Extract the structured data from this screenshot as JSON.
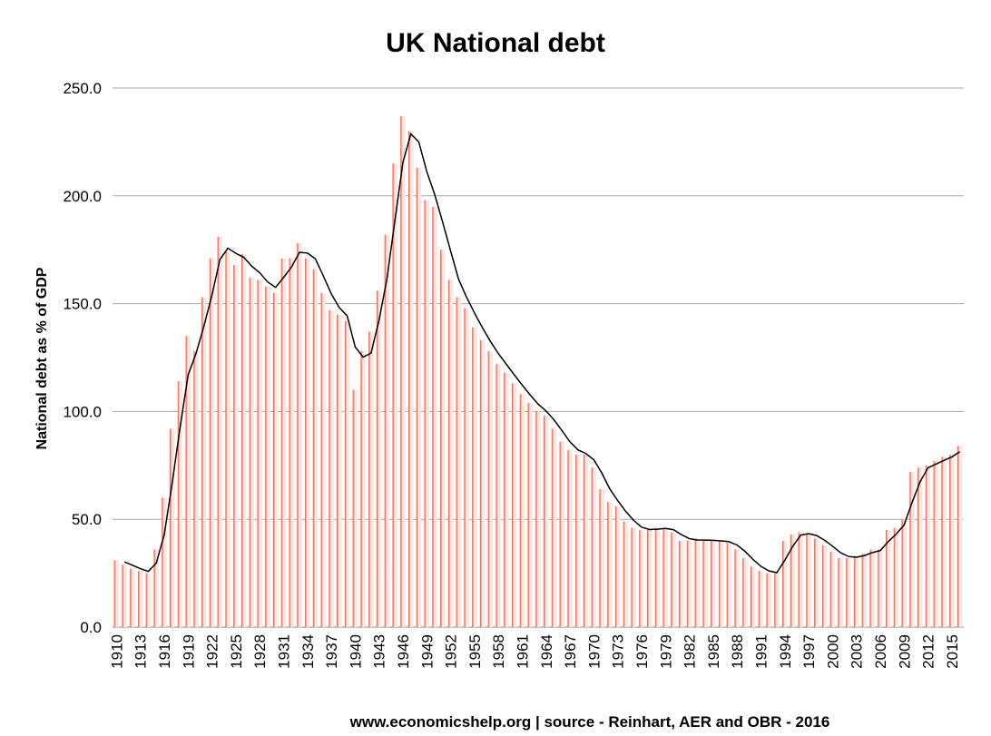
{
  "chart_data": {
    "type": "bar",
    "title": "UK National debt",
    "ylabel": "National debt as % of GDP",
    "xlabel": "",
    "source": "www.economicshelp.org | source - Reinhart, AER and OBR - 2016",
    "ylim": [
      0,
      250
    ],
    "yticks": [
      "0.0",
      "50.0",
      "100.0",
      "150.0",
      "200.0",
      "250.0"
    ],
    "grid": true,
    "legend": "none",
    "colors": {
      "bar": "#e8503a",
      "bar_light": "#fce4df",
      "line": "#000000",
      "grid": "#a6a6a6"
    },
    "xtick_labels": [
      "1910",
      "1913",
      "1916",
      "1919",
      "1922",
      "1925",
      "1928",
      "1931",
      "1934",
      "1937",
      "1940",
      "1943",
      "1946",
      "1949",
      "1952",
      "1955",
      "1958",
      "1961",
      "1964",
      "1967",
      "1970",
      "1973",
      "1976",
      "1979",
      "1982",
      "1985",
      "1988",
      "1991",
      "1994",
      "1997",
      "2000",
      "2003",
      "2006",
      "2009",
      "2012",
      "2015"
    ],
    "x": [
      1910,
      1911,
      1912,
      1913,
      1914,
      1915,
      1916,
      1917,
      1918,
      1919,
      1920,
      1921,
      1922,
      1923,
      1924,
      1925,
      1926,
      1927,
      1928,
      1929,
      1930,
      1931,
      1932,
      1933,
      1934,
      1935,
      1936,
      1937,
      1938,
      1939,
      1940,
      1941,
      1942,
      1943,
      1944,
      1945,
      1946,
      1947,
      1948,
      1949,
      1950,
      1951,
      1952,
      1953,
      1954,
      1955,
      1956,
      1957,
      1958,
      1959,
      1960,
      1961,
      1962,
      1963,
      1964,
      1965,
      1966,
      1967,
      1968,
      1969,
      1970,
      1971,
      1972,
      1973,
      1974,
      1975,
      1976,
      1977,
      1978,
      1979,
      1980,
      1981,
      1982,
      1983,
      1984,
      1985,
      1986,
      1987,
      1988,
      1989,
      1990,
      1991,
      1992,
      1993,
      1994,
      1995,
      1996,
      1997,
      1998,
      1999,
      2000,
      2001,
      2002,
      2003,
      2004,
      2005,
      2006,
      2007,
      2008,
      2009,
      2010,
      2011,
      2012,
      2013,
      2014,
      2015,
      2016
    ],
    "series": [
      {
        "values": [
          31,
          29,
          27,
          26,
          25,
          36,
          60,
          92,
          114,
          135,
          128,
          153,
          171,
          181,
          174,
          168,
          173,
          162,
          161,
          158,
          155,
          171,
          171,
          178,
          171,
          166,
          155,
          147,
          145,
          142,
          110,
          128,
          137,
          156,
          182,
          215,
          237,
          230,
          213,
          198,
          195,
          175,
          161,
          153,
          148,
          139,
          133,
          128,
          122,
          118,
          113,
          108,
          104,
          100,
          98,
          92,
          86,
          82,
          80,
          80,
          74,
          64,
          58,
          56,
          49,
          46,
          45,
          45,
          46,
          46,
          44,
          40,
          40,
          41,
          40,
          40,
          40,
          39,
          36,
          32,
          28,
          26,
          25,
          25,
          40,
          43,
          44,
          43,
          41,
          38,
          35,
          32,
          32,
          33,
          34,
          36,
          36,
          45,
          46,
          50,
          72,
          74,
          75,
          77,
          79,
          80,
          84
        ]
      }
    ]
  }
}
